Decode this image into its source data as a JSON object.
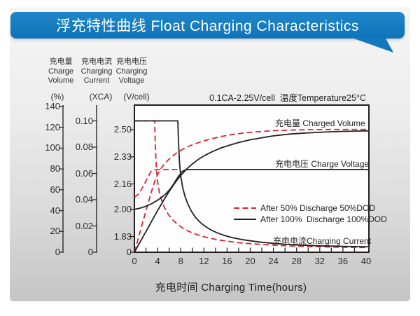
{
  "banner": {
    "title": "浮充特性曲线 Float Charging Characteristics",
    "color": "#1478be",
    "text_color": "#ffffff"
  },
  "chart_data": {
    "type": "line",
    "title": "0.1CA-2.25V/cell  温度Temperature25°C",
    "xlabel": "充电时间 Charging Time(hours)",
    "x_range": [
      0,
      40
    ],
    "x_ticks": [
      "0",
      "4",
      "8",
      "12",
      "16",
      "20",
      "24",
      "28",
      "32",
      "36",
      "40"
    ],
    "x_minor_tick_step": 2,
    "grid": false,
    "legend_position": "inside-right-middle",
    "axes": {
      "volume": {
        "label_zh": "充电量",
        "label_en": [
          "Charge",
          "Volume"
        ],
        "unit": "(%)",
        "ticks": [
          "140",
          "120",
          "100",
          "80",
          "60",
          "40",
          "20",
          "0"
        ],
        "range": [
          0,
          140
        ]
      },
      "current": {
        "label_zh": "充电电流",
        "label_en": [
          "Charging",
          "Current"
        ],
        "unit": "(XCA)",
        "ticks": [
          "0.10",
          "0.08",
          "0.06",
          "0.04",
          "0.02",
          "0"
        ],
        "range": [
          0,
          0.12
        ]
      },
      "voltage": {
        "label_zh": "充电电压",
        "label_en": [
          "Charging",
          "Voltage"
        ],
        "unit": "(V/cell)",
        "ticks": [
          "2.50",
          "2.33",
          "2.16",
          "2.00",
          "1.83",
          "0"
        ],
        "range": [
          0,
          2.58
        ],
        "broken_axis": true
      }
    },
    "curve_labels": {
      "volume": "充电量 Charged Volume",
      "voltage": "充电电压 Charge Voltage",
      "current": "充电电流Charging Current"
    },
    "legend": [
      {
        "label": "After 50% Discharge 50%DOD",
        "line": "dashed",
        "color": "#d6252e"
      },
      {
        "label": "After 100%  Discharge 100%DOD",
        "line": "solid",
        "color": "#231f20"
      }
    ],
    "series": [
      {
        "id": "charged-volume-50dod",
        "name": "Charged Volume after 50% DOD",
        "axis": "volume",
        "unit": "%",
        "style": "dashed",
        "color": "#d6252e",
        "x": [
          0,
          1,
          2,
          3,
          3.5,
          4,
          4.6,
          5.2,
          6,
          7,
          8,
          9,
          10,
          11.5,
          13,
          15,
          17,
          19,
          21,
          24,
          27,
          30,
          34,
          40
        ],
        "values": [
          0,
          20,
          40,
          59,
          68,
          74.5,
          80.5,
          85,
          89.5,
          94.2,
          97.8,
          100.8,
          103.2,
          106.2,
          108.6,
          111.2,
          113.2,
          114.6,
          115.7,
          116.8,
          117.4,
          117.7,
          117.9,
          118
        ]
      },
      {
        "id": "charge-voltage-50dod",
        "name": "Charge Voltage after 50% DOD",
        "axis": "voltage",
        "unit": "V/cell",
        "style": "dashed",
        "color": "#d6252e",
        "x": [
          0,
          0.8,
          1.6,
          2.3,
          2.9,
          3.3,
          3.8,
          4.3,
          8
        ],
        "values": [
          2.075,
          2.1,
          2.15,
          2.2,
          2.24,
          2.248,
          2.25,
          2.25,
          2.25
        ]
      },
      {
        "id": "charging-current-50dod",
        "name": "Charging Current after 50% DOD",
        "axis": "current",
        "unit": "CA",
        "style": "dashed",
        "color": "#d6252e",
        "x": [
          0,
          3.5,
          3.6,
          3.8,
          4,
          4.3,
          4.7,
          5.2,
          5.8,
          6.5,
          7.3,
          8.2,
          9.2,
          10.3,
          11.5,
          13,
          14.5,
          16,
          18,
          20,
          22,
          24,
          27,
          30,
          33,
          36,
          40
        ],
        "values": [
          0.1,
          0.1,
          0.082,
          0.064,
          0.054,
          0.046,
          0.0395,
          0.034,
          0.0292,
          0.0252,
          0.0218,
          0.0188,
          0.0163,
          0.0142,
          0.0124,
          0.0107,
          0.0094,
          0.0084,
          0.0073,
          0.0065,
          0.0059,
          0.0054,
          0.0048,
          0.0044,
          0.0041,
          0.0038,
          0.0036
        ]
      },
      {
        "id": "charged-volume-100dod",
        "name": "Charged Volume after 100% DOD",
        "axis": "volume",
        "unit": "%",
        "style": "solid",
        "color": "#231f20",
        "x": [
          0,
          1,
          2,
          3,
          4,
          5,
          6,
          6.8,
          7.5,
          8.2,
          9,
          10,
          11,
          12,
          13.5,
          15,
          16.5,
          18,
          20,
          22,
          24,
          27,
          30,
          33,
          36,
          40
        ],
        "values": [
          0,
          10,
          20,
          30,
          40,
          49.5,
          58.5,
          65,
          70.5,
          75,
          79.8,
          84.8,
          89,
          92.6,
          96.8,
          100.3,
          103,
          105.4,
          108,
          110,
          111.8,
          113.6,
          114.7,
          115.5,
          116.1,
          116.6
        ]
      },
      {
        "id": "charge-voltage-100dod",
        "name": "Charge Voltage after 100% DOD",
        "axis": "voltage",
        "unit": "V/cell",
        "style": "solid",
        "color": "#231f20",
        "x": [
          0,
          1,
          2,
          3,
          4,
          4.8,
          5.5,
          6.1,
          6.7,
          7.2,
          7.7,
          8.1,
          8.5,
          9,
          9.5,
          40
        ],
        "values": [
          2.0,
          2.008,
          2.02,
          2.036,
          2.058,
          2.078,
          2.1,
          2.125,
          2.155,
          2.185,
          2.212,
          2.232,
          2.244,
          2.249,
          2.25,
          2.25
        ]
      },
      {
        "id": "charging-current-100dod",
        "name": "Charging Current after 100% DOD",
        "axis": "current",
        "unit": "CA",
        "style": "solid",
        "color": "#231f20",
        "x": [
          0,
          7.5,
          7.6,
          7.8,
          8,
          8.3,
          8.7,
          9.2,
          9.8,
          10.5,
          11.3,
          12.2,
          13.2,
          14.3,
          15.5,
          17,
          18.5,
          20,
          22,
          24,
          26,
          28,
          30,
          32,
          34,
          36,
          38,
          40
        ],
        "values": [
          0.1,
          0.1,
          0.085,
          0.068,
          0.058,
          0.05,
          0.043,
          0.037,
          0.0315,
          0.0268,
          0.023,
          0.0198,
          0.017,
          0.0148,
          0.0128,
          0.011,
          0.0097,
          0.0087,
          0.0076,
          0.0068,
          0.0061,
          0.0056,
          0.0052,
          0.0049,
          0.0047,
          0.0045,
          0.0043,
          0.0042
        ]
      }
    ]
  }
}
